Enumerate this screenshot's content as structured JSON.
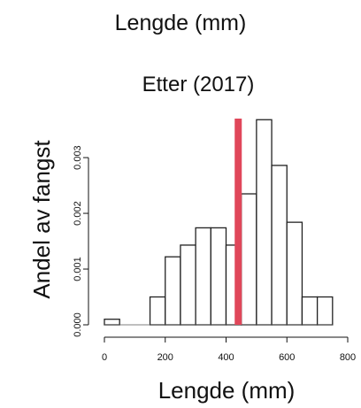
{
  "figure": {
    "title": "Lengde (mm)",
    "subtitle": "Etter (2017)"
  },
  "chart_data": {
    "type": "bar",
    "title": "Etter (2017)",
    "xlabel": "Lengde (mm)",
    "ylabel": "Andel av fangst",
    "xlim": [
      0,
      800
    ],
    "ylim": [
      0,
      0.0037
    ],
    "x_ticks": [
      0,
      200,
      400,
      600,
      800
    ],
    "y_ticks": [
      0.0,
      0.001,
      0.002,
      0.003
    ],
    "y_tick_labels": [
      "0.000",
      "0.001",
      "0.002",
      "0.003"
    ],
    "bin_width": 50,
    "bins": [
      {
        "x0": 0,
        "x1": 50,
        "value": 0.0001
      },
      {
        "x0": 50,
        "x1": 100,
        "value": 0.0
      },
      {
        "x0": 100,
        "x1": 150,
        "value": 0.0
      },
      {
        "x0": 150,
        "x1": 200,
        "value": 0.0005
      },
      {
        "x0": 200,
        "x1": 250,
        "value": 0.00122
      },
      {
        "x0": 250,
        "x1": 300,
        "value": 0.00143
      },
      {
        "x0": 300,
        "x1": 350,
        "value": 0.00174
      },
      {
        "x0": 350,
        "x1": 400,
        "value": 0.00174
      },
      {
        "x0": 400,
        "x1": 450,
        "value": 0.00143
      },
      {
        "x0": 450,
        "x1": 500,
        "value": 0.00235
      },
      {
        "x0": 500,
        "x1": 550,
        "value": 0.00368
      },
      {
        "x0": 550,
        "x1": 600,
        "value": 0.00286
      },
      {
        "x0": 600,
        "x1": 650,
        "value": 0.00184
      },
      {
        "x0": 650,
        "x1": 700,
        "value": 0.0005
      },
      {
        "x0": 700,
        "x1": 750,
        "value": 0.0005
      }
    ],
    "reference_line": {
      "x": 440,
      "color": "#e0475a"
    },
    "grid": false,
    "legend": "none"
  }
}
